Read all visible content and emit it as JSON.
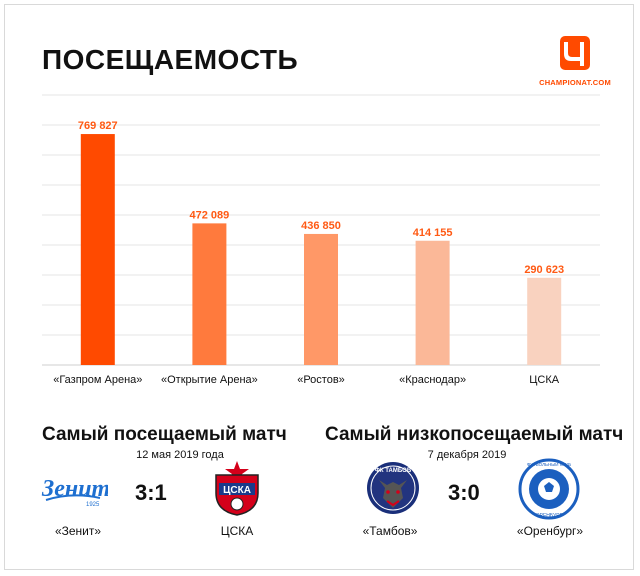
{
  "header": {
    "title": "ПОСЕЩАЕМОСТЬ",
    "brand": "CHAMPIONAT.COM",
    "brand_color": "#ff4a00"
  },
  "chart_data": {
    "type": "bar",
    "title": "ПОСЕЩАЕМОСТЬ",
    "categories": [
      "«Газпром Арена»",
      "«Открытие Арена»",
      "«Ростов»",
      "«Краснодар»",
      "ЦСКА"
    ],
    "values": [
      769827,
      472089,
      436850,
      414155,
      290623
    ],
    "value_labels": [
      "769 827",
      "472 089",
      "436 850",
      "414 155",
      "290 623"
    ],
    "bar_colors": [
      "#ff4a00",
      "#ff7a3d",
      "#ff9867",
      "#fbb898",
      "#f9d2bf"
    ],
    "label_color": "#ff5a14",
    "ylim": [
      0,
      900000
    ],
    "grid": true,
    "xlabel": "",
    "ylabel": ""
  },
  "matches": {
    "most": {
      "title": "Самый посещаемый матч",
      "date": "12 мая 2019 года",
      "score": "3:1",
      "home": "«Зенит»",
      "away": "ЦСКА",
      "home_icon": "zenit-logo-icon",
      "away_icon": "cska-logo-icon"
    },
    "least": {
      "title": "Самый низкопосещаемый матч",
      "date": "7 декабря 2019",
      "score": "3:0",
      "home": "«Тамбов»",
      "away": "«Оренбург»",
      "home_icon": "tambov-logo-icon",
      "away_icon": "orenburg-logo-icon"
    }
  }
}
